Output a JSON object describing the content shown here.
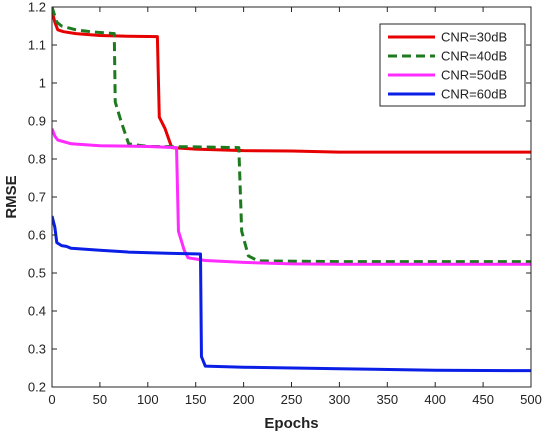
{
  "chart_data": {
    "type": "line",
    "title": "",
    "xlabel": "Epochs",
    "ylabel": "RMSE",
    "xlim": [
      0,
      500
    ],
    "ylim": [
      0.2,
      1.2
    ],
    "xticks": [
      0,
      50,
      100,
      150,
      200,
      250,
      300,
      350,
      400,
      450,
      500
    ],
    "yticks": [
      0.2,
      0.3,
      0.4,
      0.5,
      0.6,
      0.7,
      0.8,
      0.9,
      1,
      1.1,
      1.2
    ],
    "grid": false,
    "legend_position": "top-right",
    "series": [
      {
        "name": "CNR=30dB",
        "color": "#e60000",
        "dash": "solid",
        "points": [
          [
            0,
            1.19
          ],
          [
            3,
            1.16
          ],
          [
            6,
            1.14
          ],
          [
            12,
            1.135
          ],
          [
            25,
            1.13
          ],
          [
            50,
            1.125
          ],
          [
            80,
            1.123
          ],
          [
            110,
            1.122
          ],
          [
            112,
            0.91
          ],
          [
            118,
            0.88
          ],
          [
            125,
            0.83
          ],
          [
            150,
            0.826
          ],
          [
            200,
            0.822
          ],
          [
            250,
            0.821
          ],
          [
            300,
            0.818
          ],
          [
            400,
            0.818
          ],
          [
            500,
            0.818
          ]
        ]
      },
      {
        "name": "CNR=40dB",
        "color": "#1e7a1e",
        "dash": "dashed",
        "points": [
          [
            0,
            1.2
          ],
          [
            5,
            1.16
          ],
          [
            10,
            1.15
          ],
          [
            25,
            1.14
          ],
          [
            40,
            1.135
          ],
          [
            65,
            1.13
          ],
          [
            66,
            0.95
          ],
          [
            72,
            0.9
          ],
          [
            80,
            0.84
          ],
          [
            100,
            0.833
          ],
          [
            150,
            0.832
          ],
          [
            195,
            0.83
          ],
          [
            198,
            0.61
          ],
          [
            205,
            0.545
          ],
          [
            215,
            0.532
          ],
          [
            300,
            0.53
          ],
          [
            400,
            0.53
          ],
          [
            500,
            0.53
          ]
        ]
      },
      {
        "name": "CNR=50dB",
        "color": "#ff2bff",
        "dash": "solid",
        "points": [
          [
            0,
            0.88
          ],
          [
            3,
            0.86
          ],
          [
            6,
            0.85
          ],
          [
            20,
            0.84
          ],
          [
            50,
            0.835
          ],
          [
            100,
            0.833
          ],
          [
            130,
            0.83
          ],
          [
            132,
            0.61
          ],
          [
            138,
            0.56
          ],
          [
            142,
            0.54
          ],
          [
            160,
            0.533
          ],
          [
            200,
            0.528
          ],
          [
            250,
            0.524
          ],
          [
            300,
            0.523
          ],
          [
            400,
            0.523
          ],
          [
            500,
            0.523
          ]
        ]
      },
      {
        "name": "CNR=60dB",
        "color": "#0a1ee6",
        "dash": "solid",
        "points": [
          [
            0,
            0.65
          ],
          [
            3,
            0.62
          ],
          [
            5,
            0.58
          ],
          [
            10,
            0.572
          ],
          [
            15,
            0.57
          ],
          [
            20,
            0.565
          ],
          [
            50,
            0.56
          ],
          [
            80,
            0.555
          ],
          [
            120,
            0.552
          ],
          [
            155,
            0.55
          ],
          [
            156,
            0.28
          ],
          [
            160,
            0.255
          ],
          [
            200,
            0.252
          ],
          [
            300,
            0.248
          ],
          [
            400,
            0.244
          ],
          [
            500,
            0.243
          ]
        ]
      }
    ]
  }
}
